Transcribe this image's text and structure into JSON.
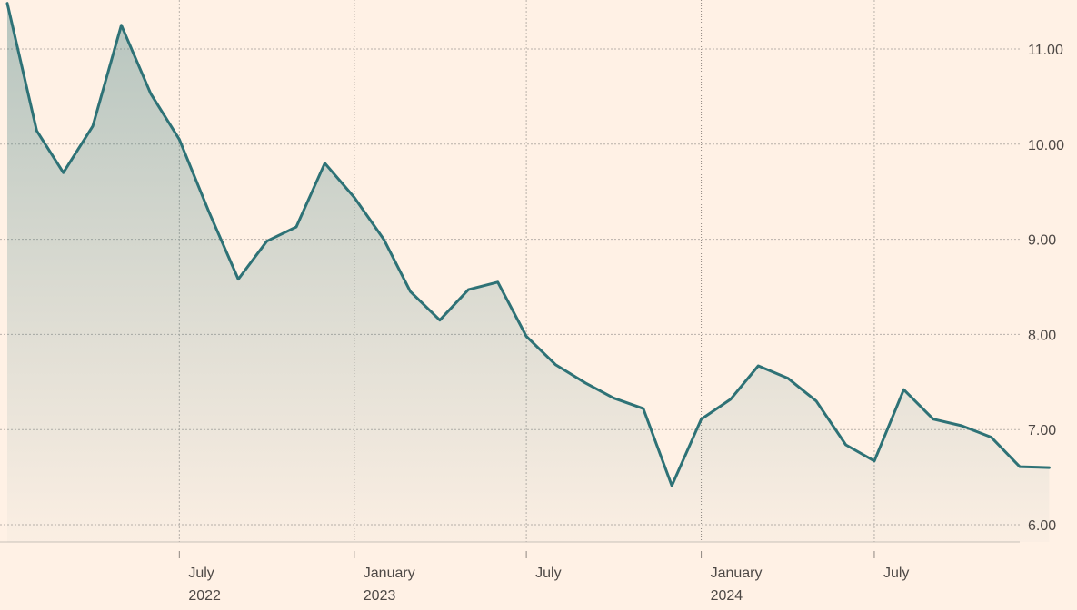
{
  "chart_data": {
    "type": "area",
    "title": "",
    "xlabel": "",
    "ylabel": "",
    "ylim": [
      6.0,
      11.5
    ],
    "grid": true,
    "legend": "none",
    "colors": {
      "line": "#2e7276",
      "background": "#fff1e5",
      "grid": "#b9b1aa",
      "text": "#4d4845"
    },
    "x": [
      "2022-01-01",
      "2022-02-01",
      "2022-03-01",
      "2022-04-01",
      "2022-05-01",
      "2022-06-01",
      "2022-07-01",
      "2022-08-01",
      "2022-09-01",
      "2022-10-01",
      "2022-11-01",
      "2022-12-01",
      "2023-01-01",
      "2023-02-01",
      "2023-03-01",
      "2023-04-01",
      "2023-05-01",
      "2023-06-01",
      "2023-07-01",
      "2023-08-01",
      "2023-09-01",
      "2023-10-01",
      "2023-11-01",
      "2023-12-01",
      "2024-01-01",
      "2024-02-01",
      "2024-03-01",
      "2024-04-01",
      "2024-05-01",
      "2024-06-01",
      "2024-07-01",
      "2024-08-01",
      "2024-09-01",
      "2024-10-01",
      "2024-11-01",
      "2024-12-01",
      "2025-01-01"
    ],
    "series": [
      {
        "values": [
          11.48,
          10.14,
          9.7,
          10.19,
          11.25,
          10.53,
          10.05,
          9.29,
          8.58,
          8.98,
          9.13,
          9.8,
          9.44,
          9.0,
          8.45,
          8.15,
          8.47,
          8.55,
          7.98,
          7.68,
          7.49,
          7.33,
          7.22,
          6.41,
          7.11,
          7.32,
          7.67,
          7.54,
          7.3,
          6.84,
          6.67,
          7.42,
          7.11,
          7.04,
          6.92,
          6.61,
          6.6
        ]
      }
    ],
    "y_ticks": [
      {
        "value": 6.0,
        "label": "6.00"
      },
      {
        "value": 7.0,
        "label": "7.00"
      },
      {
        "value": 8.0,
        "label": "8.00"
      },
      {
        "value": 9.0,
        "label": "9.00"
      },
      {
        "value": 10.0,
        "label": "10.00"
      },
      {
        "value": 11.0,
        "label": "11.00"
      }
    ],
    "x_ticks": [
      {
        "date": "2022-07-01",
        "label": "July",
        "sublabel": "2022",
        "major": false
      },
      {
        "date": "2023-01-01",
        "label": "January",
        "sublabel": "2023",
        "major": true
      },
      {
        "date": "2023-07-01",
        "label": "July",
        "sublabel": "",
        "major": false
      },
      {
        "date": "2024-01-01",
        "label": "January",
        "sublabel": "2024",
        "major": true
      },
      {
        "date": "2024-07-01",
        "label": "July",
        "sublabel": "",
        "major": false
      }
    ]
  }
}
